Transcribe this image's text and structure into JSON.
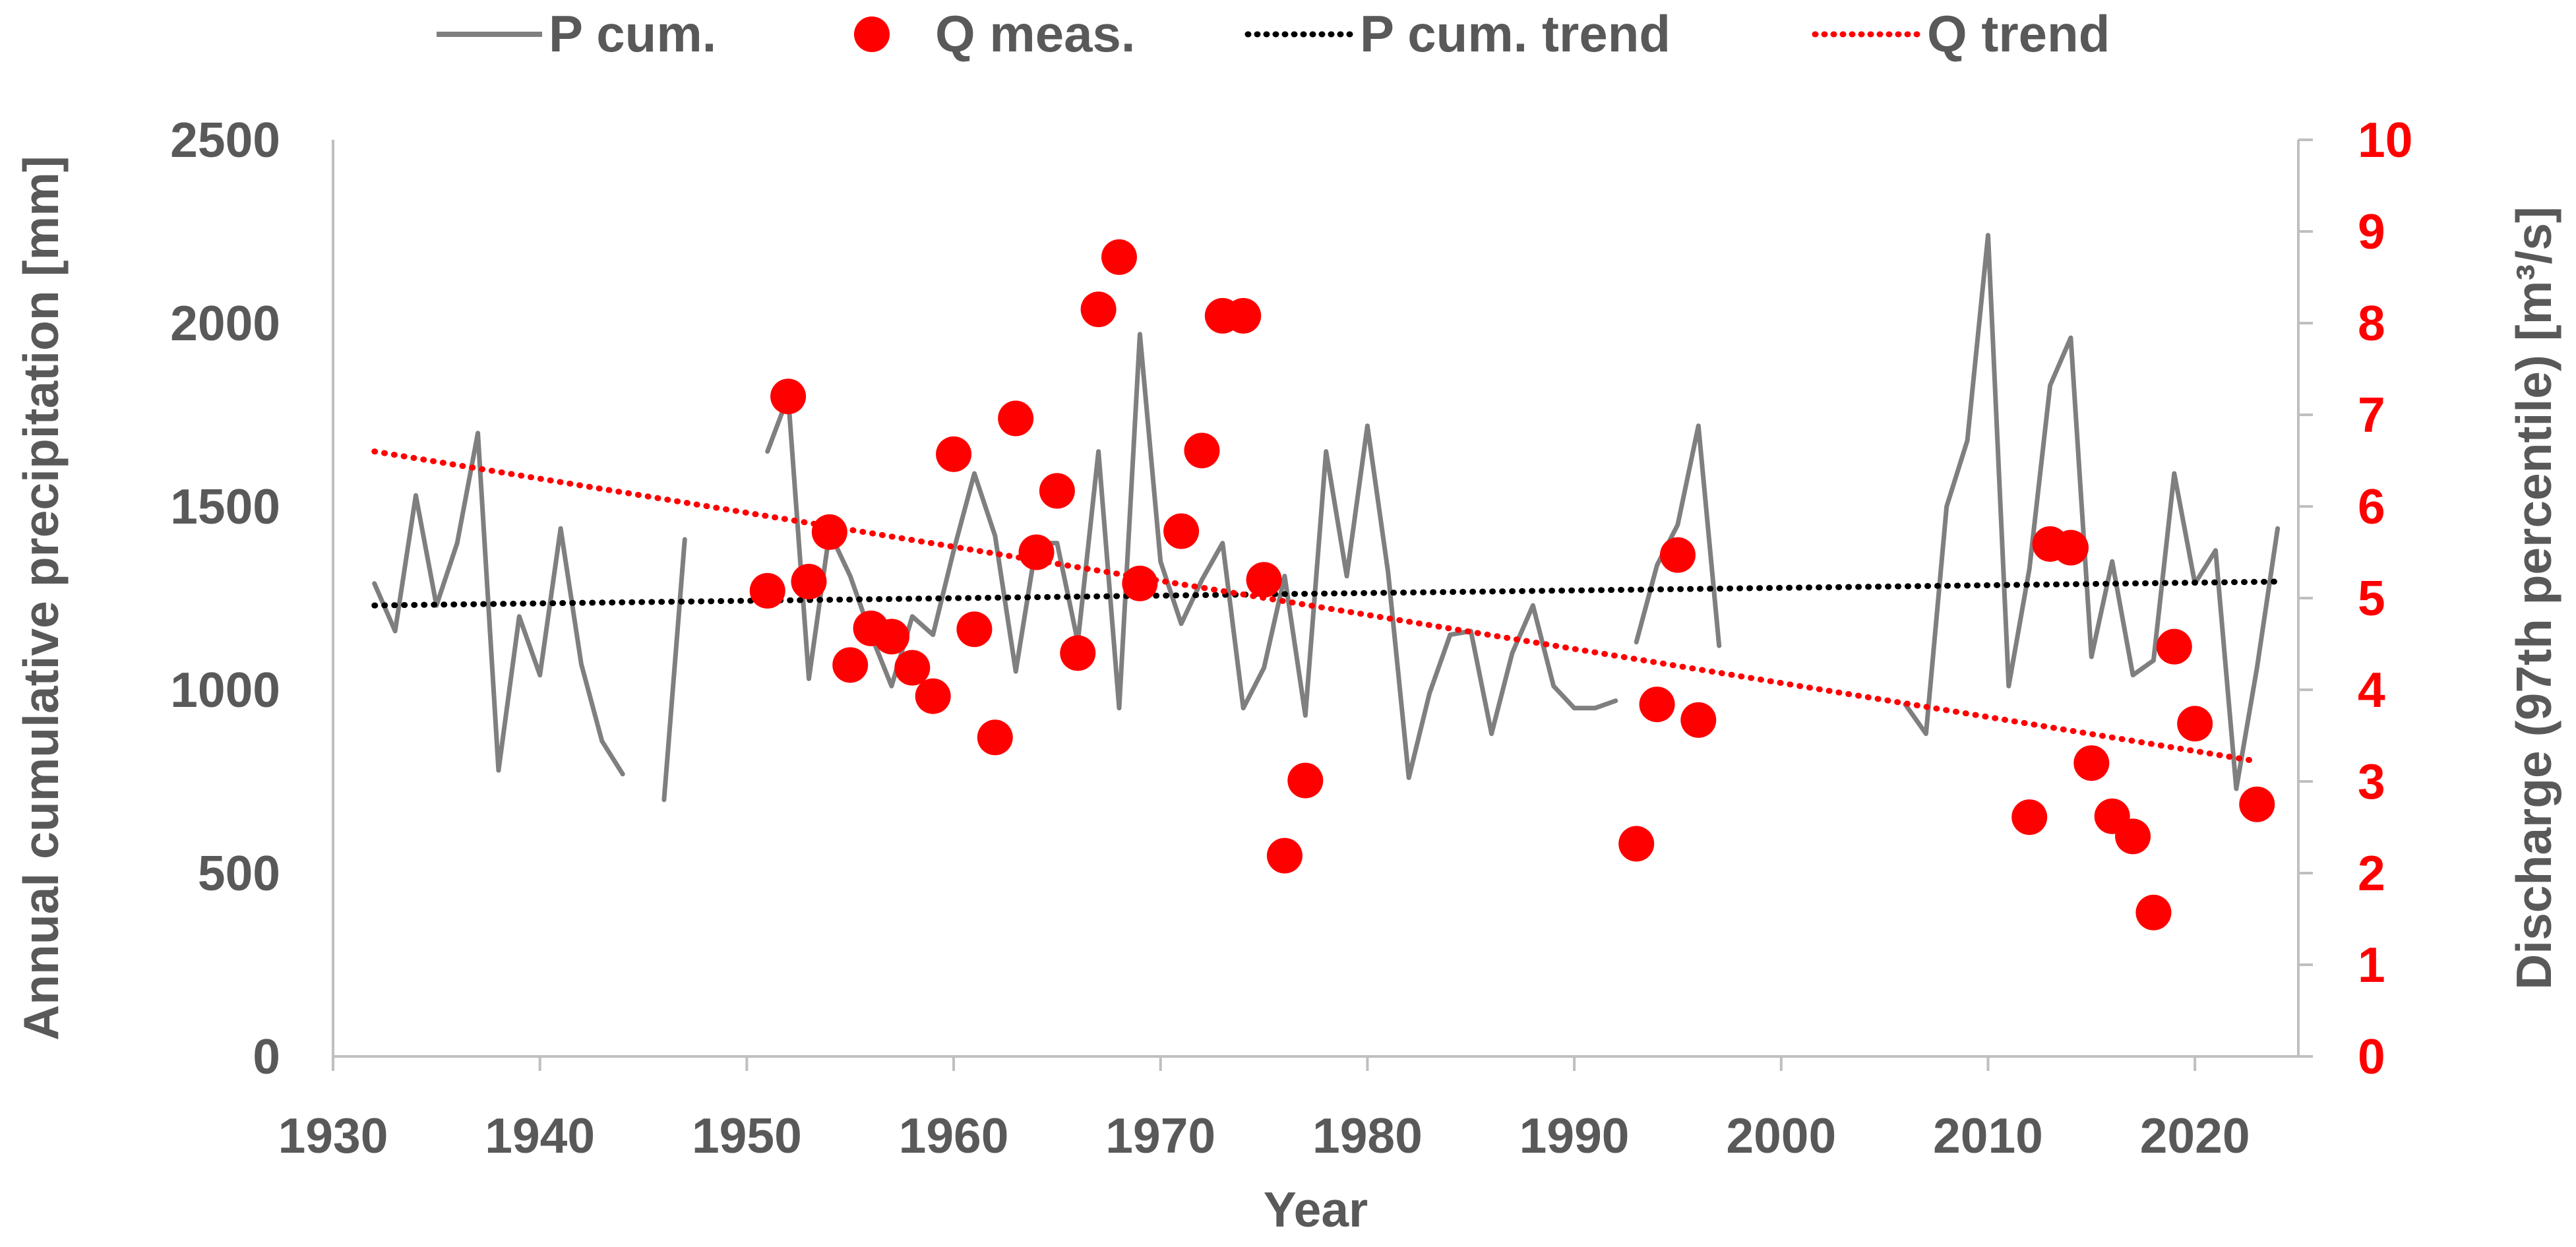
{
  "chart_data": {
    "type": "line",
    "xlabel": "Year",
    "ylabel": "Annual cumulative precipitation [mm]",
    "y2label": "Discharge (97th percentile) [m³/s]",
    "xlim": [
      1930,
      2025
    ],
    "ylim": [
      0,
      2500
    ],
    "y2lim": [
      0,
      10
    ],
    "x_ticks": [
      1930,
      1940,
      1950,
      1960,
      1970,
      1980,
      1990,
      2000,
      2010,
      2020
    ],
    "y_ticks": [
      0,
      500,
      1000,
      1500,
      2000,
      2500
    ],
    "y2_ticks": [
      0,
      1,
      2,
      3,
      4,
      5,
      6,
      7,
      8,
      9,
      10
    ],
    "grid": false,
    "legend_position": "top",
    "colors": {
      "p_cum": "#7f7f7f",
      "q_meas": "#ff0000",
      "p_trend": "#000000",
      "q_trend": "#ff0000",
      "text": "#595959",
      "axis": "#bfbfbf"
    },
    "series": [
      {
        "name": "P cum.",
        "kind": "line",
        "axis": "left",
        "segments": [
          [
            [
              1932,
              1290
            ],
            [
              1933,
              1160
            ],
            [
              1934,
              1530
            ],
            [
              1935,
              1230
            ],
            [
              1936,
              1400
            ],
            [
              1937,
              1700
            ],
            [
              1938,
              780
            ],
            [
              1939,
              1200
            ],
            [
              1940,
              1040
            ],
            [
              1941,
              1440
            ],
            [
              1942,
              1070
            ],
            [
              1943,
              860
            ],
            [
              1944,
              770
            ]
          ],
          [
            [
              1946,
              700
            ],
            [
              1947,
              1410
            ]
          ],
          [
            [
              1951,
              1650
            ],
            [
              1952,
              1800
            ],
            [
              1953,
              1030
            ],
            [
              1954,
              1430
            ],
            [
              1955,
              1310
            ],
            [
              1956,
              1150
            ],
            [
              1957,
              1010
            ],
            [
              1958,
              1200
            ],
            [
              1959,
              1150
            ],
            [
              1960,
              1380
            ],
            [
              1961,
              1590
            ],
            [
              1962,
              1420
            ],
            [
              1963,
              1050
            ],
            [
              1964,
              1400
            ],
            [
              1965,
              1400
            ],
            [
              1966,
              1130
            ],
            [
              1967,
              1650
            ],
            [
              1968,
              950
            ],
            [
              1969,
              1970
            ],
            [
              1970,
              1350
            ],
            [
              1971,
              1180
            ],
            [
              1972,
              1300
            ],
            [
              1973,
              1400
            ],
            [
              1974,
              950
            ],
            [
              1975,
              1060
            ],
            [
              1976,
              1310
            ],
            [
              1977,
              930
            ],
            [
              1978,
              1650
            ],
            [
              1979,
              1310
            ],
            [
              1980,
              1720
            ],
            [
              1981,
              1320
            ],
            [
              1982,
              760
            ],
            [
              1983,
              990
            ],
            [
              1984,
              1150
            ],
            [
              1985,
              1160
            ],
            [
              1986,
              880
            ],
            [
              1987,
              1100
            ],
            [
              1988,
              1230
            ],
            [
              1989,
              1010
            ],
            [
              1990,
              950
            ],
            [
              1991,
              950
            ],
            [
              1992,
              970
            ]
          ],
          [
            [
              1993,
              1130
            ],
            [
              1994,
              1340
            ],
            [
              1995,
              1450
            ],
            [
              1996,
              1720
            ],
            [
              1997,
              1120
            ]
          ],
          [
            [
              2006,
              960
            ],
            [
              2007,
              880
            ],
            [
              2008,
              1500
            ],
            [
              2009,
              1680
            ],
            [
              2010,
              2240
            ],
            [
              2011,
              1010
            ],
            [
              2012,
              1330
            ],
            [
              2013,
              1830
            ],
            [
              2014,
              1960
            ],
            [
              2015,
              1090
            ],
            [
              2016,
              1350
            ],
            [
              2017,
              1040
            ],
            [
              2018,
              1080
            ],
            [
              2019,
              1590
            ],
            [
              2020,
              1290
            ],
            [
              2021,
              1380
            ],
            [
              2022,
              730
            ],
            [
              2023,
              1060
            ],
            [
              2024,
              1440
            ]
          ]
        ]
      },
      {
        "name": "Q meas.",
        "kind": "scatter",
        "axis": "right",
        "points": [
          [
            1951,
            5.08
          ],
          [
            1952,
            7.2
          ],
          [
            1953,
            5.18
          ],
          [
            1954,
            5.72
          ],
          [
            1955,
            4.27
          ],
          [
            1956,
            4.67
          ],
          [
            1957,
            4.58
          ],
          [
            1958,
            4.24
          ],
          [
            1959,
            3.93
          ],
          [
            1960,
            6.57
          ],
          [
            1961,
            4.66
          ],
          [
            1962,
            3.48
          ],
          [
            1963,
            6.96
          ],
          [
            1964,
            5.5
          ],
          [
            1965,
            6.17
          ],
          [
            1966,
            4.4
          ],
          [
            1967,
            8.15
          ],
          [
            1968,
            8.72
          ],
          [
            1969,
            5.16
          ],
          [
            1971,
            5.73
          ],
          [
            1972,
            6.61
          ],
          [
            1973,
            8.08
          ],
          [
            1974,
            8.08
          ],
          [
            1975,
            5.2
          ],
          [
            1976,
            2.19
          ],
          [
            1977,
            3.01
          ],
          [
            1993,
            2.32
          ],
          [
            1994,
            3.84
          ],
          [
            1995,
            5.47
          ],
          [
            1996,
            3.67
          ],
          [
            2012,
            2.61
          ],
          [
            2013,
            5.59
          ],
          [
            2014,
            5.55
          ],
          [
            2015,
            3.2
          ],
          [
            2016,
            2.62
          ],
          [
            2017,
            2.4
          ],
          [
            2018,
            1.57
          ],
          [
            2019,
            4.47
          ],
          [
            2020,
            3.63
          ],
          [
            2023,
            2.75
          ]
        ]
      },
      {
        "name": "P cum. trend",
        "kind": "trend",
        "axis": "left",
        "from": [
          1932,
          1230
        ],
        "to": [
          2024,
          1295
        ]
      },
      {
        "name": "Q trend",
        "kind": "trend",
        "axis": "right",
        "from": [
          1932,
          6.6
        ],
        "to": [
          2023,
          3.22
        ]
      }
    ]
  }
}
